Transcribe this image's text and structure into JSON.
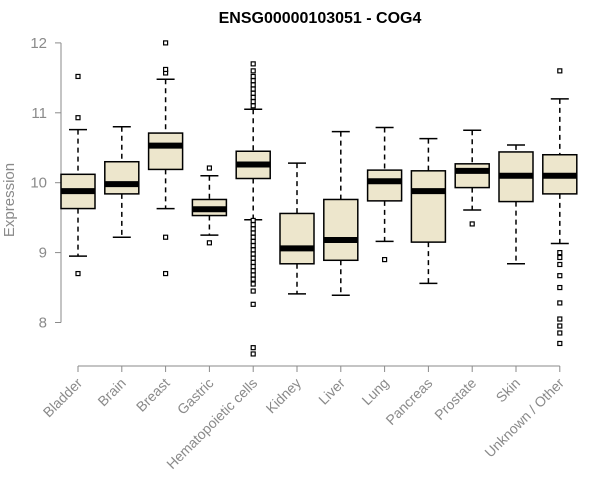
{
  "chart_data": {
    "type": "boxplot",
    "title": "ENSG00000103051 - COG4",
    "xlabel": "",
    "ylabel": "Expression",
    "ylim": [
      7.5,
      12.05
    ],
    "yticks": [
      8,
      9,
      10,
      11,
      12
    ],
    "colors": {
      "box_fill": "#ede6cc",
      "stroke": "#000000",
      "axis": "#8a8a8a"
    },
    "categories": [
      "Bladder",
      "Brain",
      "Breast",
      "Gastric",
      "Hematopoietic cells",
      "Kidney",
      "Liver",
      "Lung",
      "Pancreas",
      "Prostate",
      "Skin",
      "Unknown / Other"
    ],
    "boxes": [
      {
        "q1": 9.63,
        "median": 9.88,
        "q3": 10.12,
        "wlo": 8.95,
        "whi": 10.76,
        "outliers": [
          8.7,
          10.93,
          11.52
        ]
      },
      {
        "q1": 9.84,
        "median": 9.98,
        "q3": 10.3,
        "wlo": 9.22,
        "whi": 10.8,
        "outliers": []
      },
      {
        "q1": 10.19,
        "median": 10.53,
        "q3": 10.71,
        "wlo": 9.63,
        "whi": 11.48,
        "outliers": [
          8.7,
          9.22,
          11.57,
          11.62,
          12.0
        ]
      },
      {
        "q1": 9.53,
        "median": 9.62,
        "q3": 9.76,
        "wlo": 9.25,
        "whi": 10.1,
        "outliers": [
          9.14,
          10.21
        ]
      },
      {
        "q1": 10.06,
        "median": 10.26,
        "q3": 10.45,
        "wlo": 9.47,
        "whi": 11.05,
        "outliers": [
          7.55,
          7.64,
          8.26,
          8.45,
          8.55,
          8.62,
          8.68,
          8.74,
          8.8,
          8.86,
          8.92,
          8.98,
          9.04,
          9.1,
          9.16,
          9.22,
          9.28,
          9.34,
          9.4,
          9.46,
          11.1,
          11.16,
          11.22,
          11.28,
          11.34,
          11.4,
          11.46,
          11.52,
          11.6,
          11.7
        ]
      },
      {
        "q1": 8.84,
        "median": 9.06,
        "q3": 9.56,
        "wlo": 8.41,
        "whi": 10.28,
        "outliers": []
      },
      {
        "q1": 8.89,
        "median": 9.18,
        "q3": 9.76,
        "wlo": 8.39,
        "whi": 10.73,
        "outliers": []
      },
      {
        "q1": 9.74,
        "median": 10.02,
        "q3": 10.18,
        "wlo": 9.16,
        "whi": 10.79,
        "outliers": [
          8.9
        ]
      },
      {
        "q1": 9.15,
        "median": 9.88,
        "q3": 10.17,
        "wlo": 8.56,
        "whi": 10.63,
        "outliers": []
      },
      {
        "q1": 9.93,
        "median": 10.17,
        "q3": 10.27,
        "wlo": 9.61,
        "whi": 10.75,
        "outliers": [
          9.41
        ]
      },
      {
        "q1": 9.73,
        "median": 10.1,
        "q3": 10.44,
        "wlo": 8.84,
        "whi": 10.54,
        "outliers": []
      },
      {
        "q1": 9.84,
        "median": 10.1,
        "q3": 10.4,
        "wlo": 9.13,
        "whi": 11.2,
        "outliers": [
          7.7,
          7.85,
          7.95,
          8.05,
          8.28,
          8.5,
          8.67,
          8.83,
          8.93,
          9.0,
          11.6
        ]
      }
    ]
  }
}
